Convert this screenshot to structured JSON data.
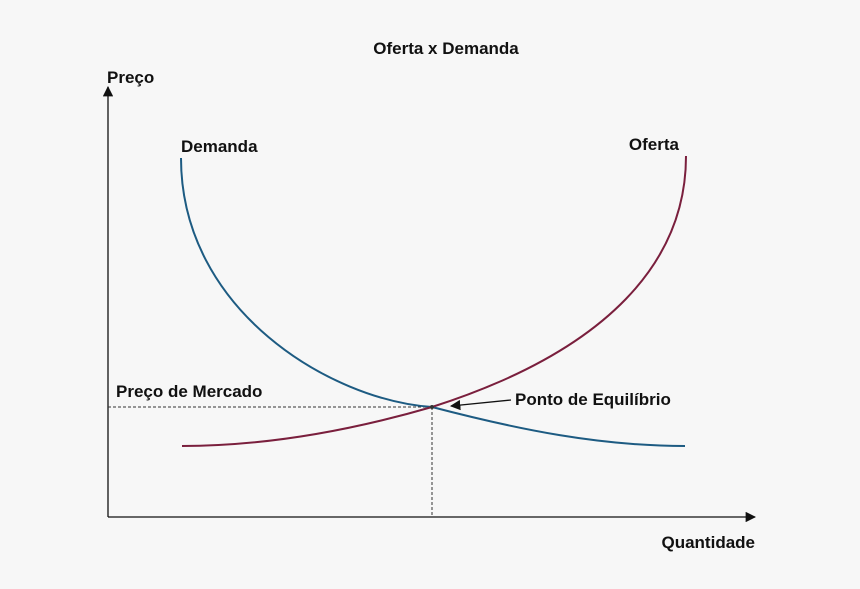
{
  "title": "Oferta x Demanda",
  "axes": {
    "y_label": "Preço",
    "x_label": "Quantidade"
  },
  "curves": {
    "demand": {
      "label": "Demanda",
      "color": "#1d5b82"
    },
    "supply": {
      "label": "Oferta",
      "color": "#7a1f3d"
    }
  },
  "annotations": {
    "market_price": "Preço de Mercado",
    "equilibrium": "Ponto de Equilíbrio"
  },
  "colors": {
    "axis": "#111111",
    "guide": "#333333",
    "background": "#f7f7f7"
  }
}
